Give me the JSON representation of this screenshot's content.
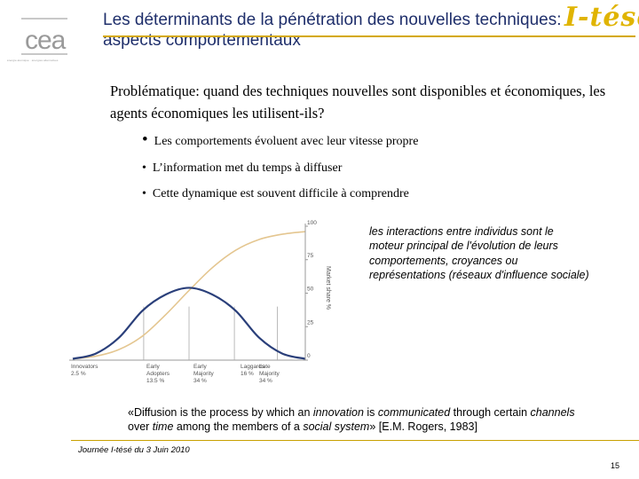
{
  "header": {
    "logo_text": "cea",
    "logo_tagline": "énergie atomique · énergies alternatives",
    "title": "Les déterminants de la pénétration des nouvelles techniques: aspects comportementaux",
    "brand": "I-tésé"
  },
  "content": {
    "problem": "Problématique: quand des techniques nouvelles sont disponibles et économiques, les agents économiques les utilisent-ils?",
    "bullets": [
      "Les comportements évoluent avec leur vitesse propre",
      "L’information met du temps à diffuser",
      "Cette dynamique est souvent difficile à comprendre"
    ],
    "note": "les interactions entre individus sont le moteur principal de l'évolution de leurs comportements, croyances ou représentations (réseaux d'influence sociale)",
    "quote": {
      "open": "«Diffusion is the process by which an ",
      "em1": "innovation",
      "t1": " is ",
      "em2": "communicated",
      "t2": " through certain ",
      "em3": "channels",
      "t3": " over ",
      "em4": "time",
      "t4": " among the members of a ",
      "em5": "social system",
      "close": "» [E.M. Rogers, 1983]"
    }
  },
  "chart_data": {
    "type": "line",
    "ylabel": "Market share %",
    "ylim": [
      0,
      100
    ],
    "yticks": [
      0,
      25,
      50,
      75,
      100
    ],
    "series": [
      {
        "name": "",
        "color": "#e4c690",
        "description_only": false,
        "x": [
          0,
          0.1,
          0.2,
          0.3,
          0.4,
          0.5,
          0.6,
          0.7,
          0.8,
          0.9,
          1.0
        ],
        "values": [
          1,
          3,
          8,
          18,
          34,
          52,
          69,
          82,
          90,
          94,
          96
        ]
      },
      {
        "name": "",
        "color": "#2a3f7a",
        "x": [
          0,
          0.1,
          0.2,
          0.3,
          0.4,
          0.5,
          0.6,
          0.7,
          0.8,
          0.9,
          1.0
        ],
        "values": [
          1,
          5,
          17,
          37,
          49,
          54,
          49,
          37,
          17,
          5,
          1
        ]
      }
    ],
    "categories": [
      {
        "label": "Innovators",
        "share": "2.5 %"
      },
      {
        "label": "Early Adopters",
        "share": "13.5 %"
      },
      {
        "label": "Early Majority",
        "share": "34 %"
      },
      {
        "label": "Late Majority",
        "share": "34 %"
      },
      {
        "label": "Laggards",
        "share": "16 %"
      }
    ]
  },
  "footer": {
    "text": "Journée I-tésé du 3 Juin 2010",
    "page": "15"
  }
}
